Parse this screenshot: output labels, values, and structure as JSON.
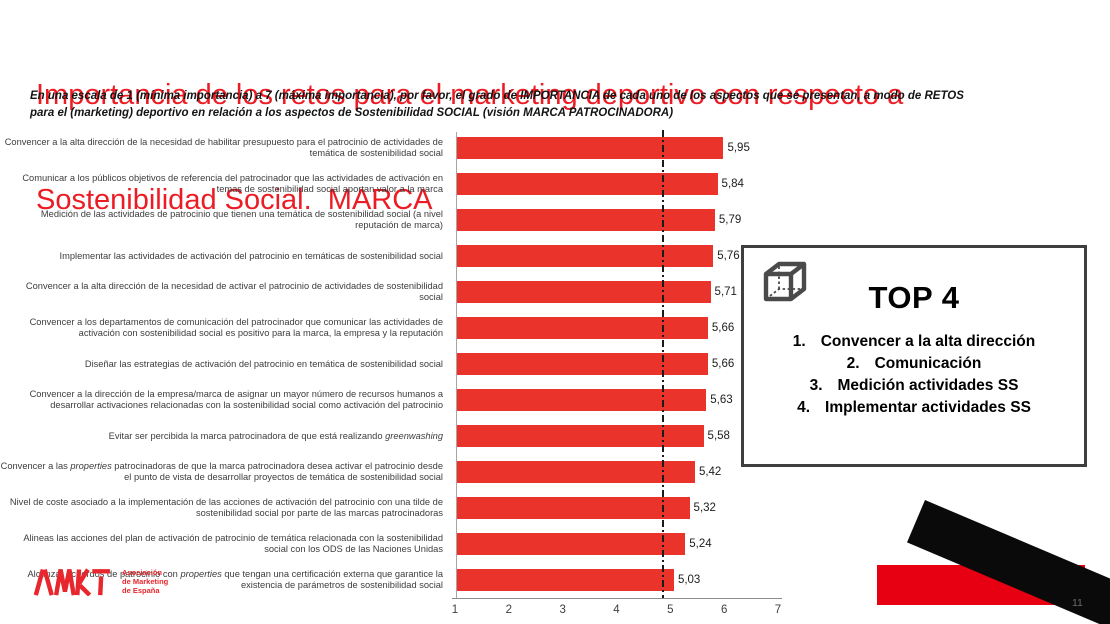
{
  "slide": {
    "title_lines": [
      "Importancia de los retos para el marketing deportivo con respecto a",
      "Sostenibilidad Social.  MARCA"
    ],
    "subtitle_lines": [
      "En una escala de 1 (mínima importancia) a 7 (máxima importancia), por favor, el grado de IMPORTANCIA de cada uno de los aspectos que se presentan, a modo de RETOS",
      "para el (marketing) deportivo en relación a los aspectos de Sostenibilidad SOCIAL (visión MARCA PATROCINADORA)"
    ],
    "page_number": "11"
  },
  "chart_data": {
    "type": "bar",
    "orientation": "horizontal",
    "title": "",
    "xlabel": "",
    "ylabel": "",
    "xlim": [
      1,
      7
    ],
    "x_ticks": [
      "1",
      "2",
      "3",
      "4",
      "5",
      "6",
      "7"
    ],
    "reference_line_x": 4.84,
    "bar_color": "#e9332b",
    "grid": false,
    "legend": null,
    "rows": [
      {
        "label": "Convencer a la alta dirección de la necesidad de habilitar presupuesto para el patrocinio de actividades de temática de sostenibilidad social",
        "value": 5.95,
        "value_label": "5,95",
        "italic_words": []
      },
      {
        "label": "Comunicar a los públicos objetivos de referencia del patrocinador que las actividades de activación en temas de sostenibilidad social aportan valor a la marca",
        "value": 5.84,
        "value_label": "5,84",
        "italic_words": []
      },
      {
        "label": "Medición de las actividades de patrocinio que tienen una temática de sostenibilidad social (a nivel reputación de marca)",
        "value": 5.79,
        "value_label": "5,79",
        "italic_words": []
      },
      {
        "label": "Implementar las actividades de activación del patrocinio en temáticas de sostenibilidad social",
        "value": 5.76,
        "value_label": "5,76",
        "italic_words": []
      },
      {
        "label": "Convencer a la alta dirección de la necesidad de activar el patrocinio de actividades de sostenibilidad social",
        "value": 5.71,
        "value_label": "5,71",
        "italic_words": []
      },
      {
        "label": "Convencer a los departamentos de comunicación del patrocinador que comunicar las actividades de activación con sostenibilidad social es positivo para la marca, la empresa y la reputación",
        "value": 5.66,
        "value_label": "5,66",
        "italic_words": []
      },
      {
        "label": "Diseñar las estrategias de activación del patrocinio en temática de sostenibilidad social",
        "value": 5.66,
        "value_label": "5,66",
        "italic_words": []
      },
      {
        "label": "Convencer a la dirección de la empresa/marca de asignar un mayor número de recursos humanos a desarrollar activaciones relacionadas con la sostenibilidad social como activación del patrocinio",
        "value": 5.63,
        "value_label": "5,63",
        "italic_words": []
      },
      {
        "label": "Evitar ser percibida la marca patrocinadora de que está realizando greenwashing",
        "value": 5.58,
        "value_label": "5,58",
        "italic_words": [
          "greenwashing"
        ]
      },
      {
        "label": "Convencer a las properties patrocinadoras de que la marca patrocinadora desea activar el patrocinio desde el punto de vista de desarrollar proyectos de temática de sostenibilidad social",
        "value": 5.42,
        "value_label": "5,42",
        "italic_words": [
          "properties"
        ]
      },
      {
        "label": "Nivel de coste asociado a la implementación de las acciones de activación del patrocinio con una tilde de sostenibilidad social por parte de las marcas patrocinadoras",
        "value": 5.32,
        "value_label": "5,32",
        "italic_words": []
      },
      {
        "label": "Alineas las acciones del plan de activación de patrocinio de temática relacionada con la sostenibilidad social con los ODS de las Naciones Unidas",
        "value": 5.24,
        "value_label": "5,24",
        "italic_words": []
      },
      {
        "label": "Alcanzar acuerdos de patrocinio con properties que tengan una certificación externa que garantice la existencia de parámetros de sostenibilidad social",
        "value": 5.03,
        "value_label": "5,03",
        "italic_words": [
          "properties"
        ]
      }
    ]
  },
  "top4": {
    "icon": "cube-icon",
    "heading": "TOP 4",
    "items": [
      {
        "num": "1.",
        "text": "Convencer a la alta dirección"
      },
      {
        "num": "2.",
        "text": "Comunicación"
      },
      {
        "num": "3.",
        "text": "Medición actividades SS"
      },
      {
        "num": "4.",
        "text": "Implementar actividades SS"
      }
    ]
  },
  "logo": {
    "wordmark": "AMKT",
    "tagline_lines": [
      "Asociación",
      "de Marketing",
      "de España"
    ],
    "color": "#e8262d"
  }
}
